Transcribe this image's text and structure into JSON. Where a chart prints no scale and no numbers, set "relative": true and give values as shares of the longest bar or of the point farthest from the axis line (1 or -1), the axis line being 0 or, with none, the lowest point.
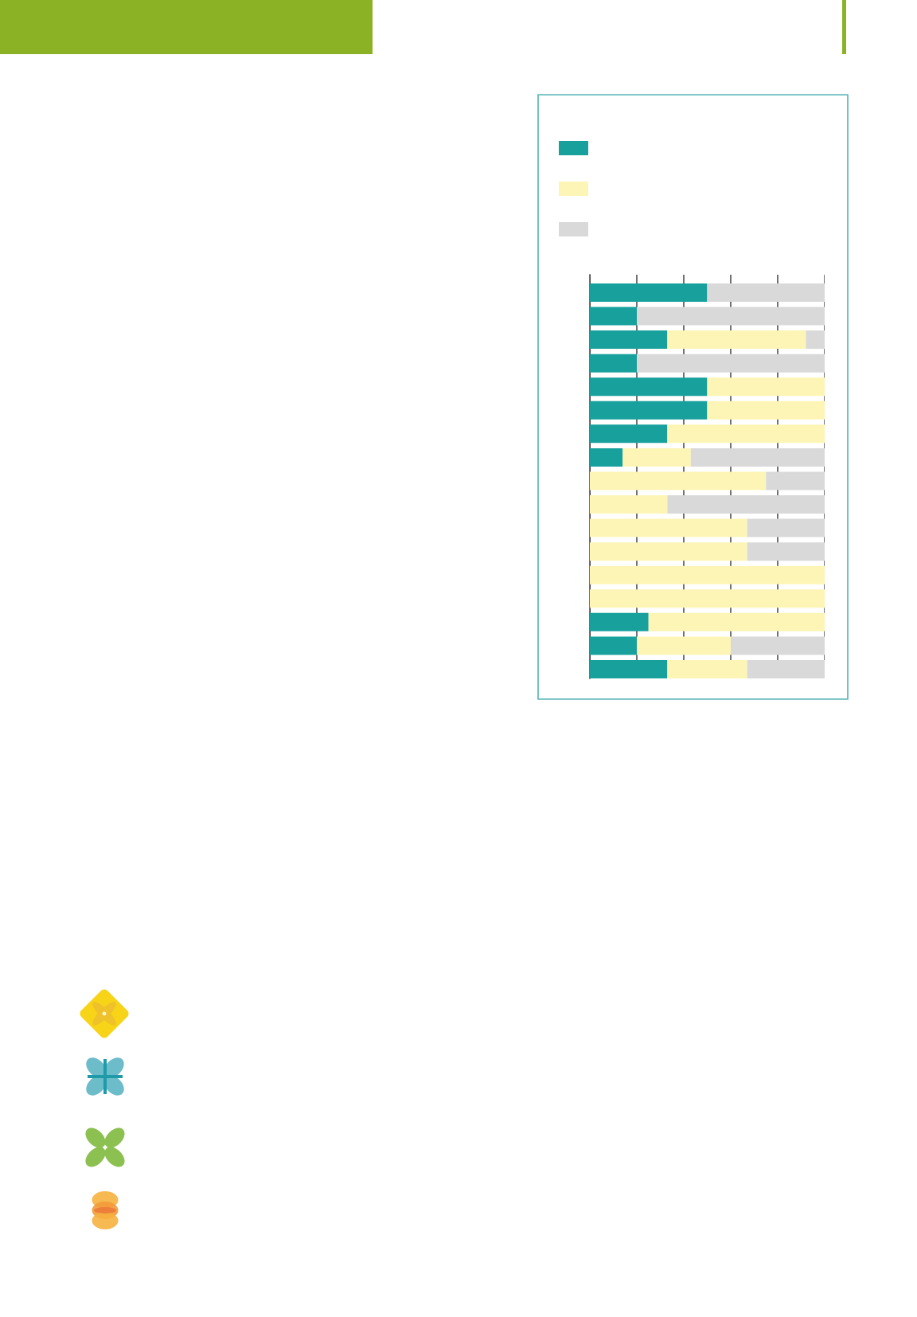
{
  "chart_data": {
    "type": "bar",
    "orientation": "horizontal",
    "stacked": true,
    "relative": true,
    "grid": "x",
    "categories": [
      null,
      null,
      null,
      null,
      null,
      null,
      null,
      null,
      null,
      null,
      null,
      null,
      null,
      null,
      null,
      null,
      null
    ],
    "series": [
      {
        "color": "#17a09c",
        "values": [
          0.5,
          0.2,
          0.33,
          0.2,
          0.5,
          0.5,
          0.33,
          0.14,
          null,
          null,
          null,
          null,
          null,
          null,
          0.25,
          0.2,
          0.33
        ]
      },
      {
        "color": "#fdf5b5",
        "values": [
          null,
          null,
          0.59,
          null,
          0.5,
          0.5,
          0.67,
          0.29,
          0.75,
          0.33,
          0.67,
          0.67,
          1,
          1,
          0.75,
          0.4,
          0.34
        ]
      },
      {
        "color": "#d9d9d9",
        "values": [
          0.5,
          0.8,
          0.08,
          0.8,
          null,
          null,
          null,
          0.57,
          0.25,
          0.67,
          0.33,
          0.33,
          null,
          null,
          null,
          0.4,
          0.33
        ]
      }
    ]
  }
}
